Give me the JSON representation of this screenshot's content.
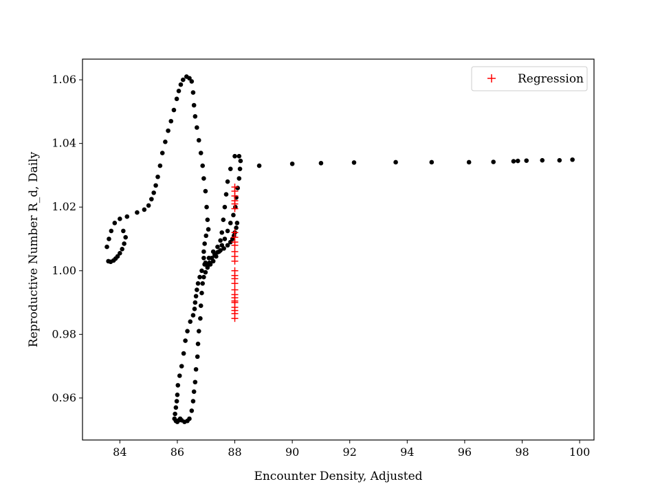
{
  "chart_data": {
    "type": "scatter",
    "xlabel": "Encounter Density, Adjusted",
    "ylabel": "Reproductive Number R_d, Daily",
    "xlim": [
      82.7,
      100.5
    ],
    "ylim": [
      0.9468,
      1.0665
    ],
    "xticks": [
      84,
      86,
      88,
      90,
      92,
      94,
      96,
      98,
      100
    ],
    "yticks": [
      0.96,
      0.98,
      1.0,
      1.02,
      1.04,
      1.06
    ],
    "ytick_labels": [
      "0.96",
      "0.98",
      "1.00",
      "1.02",
      "1.04",
      "1.06"
    ],
    "legend_position": "top-right",
    "grid": false,
    "series": [
      {
        "name": "",
        "marker": "circle",
        "color": "#000000",
        "x": [
          84.12,
          84.2,
          84.15,
          84.08,
          84.0,
          83.92,
          83.85,
          83.78,
          83.68,
          83.6,
          83.55,
          83.62,
          83.7,
          83.82,
          84.0,
          84.25,
          84.6,
          84.85,
          85.0,
          85.1,
          85.18,
          85.25,
          85.32,
          85.4,
          85.48,
          85.58,
          85.68,
          85.78,
          85.88,
          85.98,
          86.05,
          86.12,
          86.2,
          86.32,
          86.42,
          86.5,
          86.55,
          86.58,
          86.62,
          86.68,
          86.75,
          86.82,
          86.88,
          86.92,
          86.98,
          87.02,
          87.05,
          87.08,
          87.0,
          86.95,
          86.92,
          86.92,
          86.98,
          87.05,
          87.15,
          87.25,
          87.35,
          87.45,
          87.55,
          87.65,
          87.75,
          87.85,
          87.95,
          88.02,
          88.05,
          88.1,
          88.15,
          88.18,
          88.2,
          88.15,
          88.0,
          87.85,
          87.75,
          87.7,
          87.65,
          87.6,
          87.55,
          87.5,
          87.4,
          87.25,
          87.1,
          86.95,
          86.85,
          86.78,
          86.72,
          86.68,
          86.65,
          86.62,
          86.6,
          86.55,
          86.45,
          86.35,
          86.28,
          86.22,
          86.15,
          86.08,
          86.02,
          86.0,
          85.98,
          85.95,
          85.92,
          85.9,
          85.95,
          86.0,
          86.05,
          86.1,
          86.15,
          86.25,
          86.35,
          86.42,
          86.5,
          86.55,
          86.58,
          86.62,
          86.65,
          86.7,
          86.72,
          86.75,
          86.8,
          86.82,
          86.85,
          86.88,
          86.92,
          86.98,
          87.05,
          87.12,
          87.2,
          87.3,
          87.4,
          87.5,
          87.62,
          87.75,
          87.85,
          87.92,
          87.97,
          88.0,
          88.05,
          88.08,
          88.85,
          90.0,
          91.0,
          92.15,
          93.6,
          94.85,
          96.15,
          97.0,
          97.7,
          97.85,
          98.15,
          98.7,
          99.3,
          99.75
        ],
        "y": [
          1.0125,
          1.0105,
          1.0085,
          1.0068,
          1.0055,
          1.0045,
          1.0038,
          1.0032,
          1.0028,
          1.003,
          1.0075,
          1.01,
          1.0125,
          1.015,
          1.0163,
          1.017,
          1.0183,
          1.0192,
          1.0205,
          1.0225,
          1.0245,
          1.0268,
          1.0295,
          1.033,
          1.037,
          1.0405,
          1.044,
          1.047,
          1.0505,
          1.054,
          1.0565,
          1.0585,
          1.06,
          1.061,
          1.0605,
          1.0595,
          1.056,
          1.052,
          1.0485,
          1.045,
          1.041,
          1.037,
          1.033,
          1.029,
          1.025,
          1.02,
          1.016,
          1.013,
          1.011,
          1.0085,
          1.006,
          1.004,
          1.0025,
          1.0015,
          1.002,
          1.003,
          1.0045,
          1.006,
          1.008,
          1.01,
          1.0125,
          1.015,
          1.0175,
          1.02,
          1.023,
          1.026,
          1.029,
          1.032,
          1.0345,
          1.036,
          1.036,
          1.032,
          1.028,
          1.024,
          1.02,
          1.016,
          1.012,
          1.0095,
          1.0075,
          1.006,
          1.004,
          1.002,
          1.0,
          0.998,
          0.996,
          0.994,
          0.992,
          0.99,
          0.988,
          0.986,
          0.984,
          0.981,
          0.978,
          0.974,
          0.97,
          0.967,
          0.964,
          0.961,
          0.959,
          0.957,
          0.955,
          0.9535,
          0.9528,
          0.9525,
          0.953,
          0.9535,
          0.953,
          0.9525,
          0.9528,
          0.9535,
          0.956,
          0.959,
          0.962,
          0.965,
          0.969,
          0.973,
          0.977,
          0.981,
          0.985,
          0.989,
          0.993,
          0.996,
          0.998,
          0.9995,
          1.001,
          1.0025,
          1.004,
          1.005,
          1.0058,
          1.0064,
          1.007,
          1.008,
          1.009,
          1.01,
          1.011,
          1.012,
          1.0135,
          1.015,
          1.033,
          1.0336,
          1.0338,
          1.034,
          1.0341,
          1.0341,
          1.0341,
          1.0342,
          1.0344,
          1.0345,
          1.0346,
          1.0347,
          1.0347,
          1.0349
        ]
      },
      {
        "name": "Regression",
        "marker": "plus",
        "color": "#ff0000",
        "x": [
          88.0,
          88.0,
          88.0,
          88.0,
          88.0,
          88.0,
          88.0,
          88.0,
          88.0,
          88.0,
          88.0,
          88.0,
          88.0,
          88.0,
          88.0,
          88.0,
          88.0,
          88.0,
          88.0,
          88.0,
          88.0,
          88.0,
          88.0,
          88.0,
          88.0,
          88.0
        ],
        "y": [
          1.0263,
          1.025,
          1.0235,
          1.022,
          1.021,
          1.0195,
          1.012,
          1.0105,
          1.009,
          1.008,
          1.006,
          1.0045,
          1.003,
          1.0,
          0.9985,
          0.9975,
          0.996,
          0.994,
          0.9925,
          0.9915,
          0.99,
          0.9885,
          0.9875,
          0.9865,
          0.985,
          0.9905
        ]
      }
    ]
  }
}
